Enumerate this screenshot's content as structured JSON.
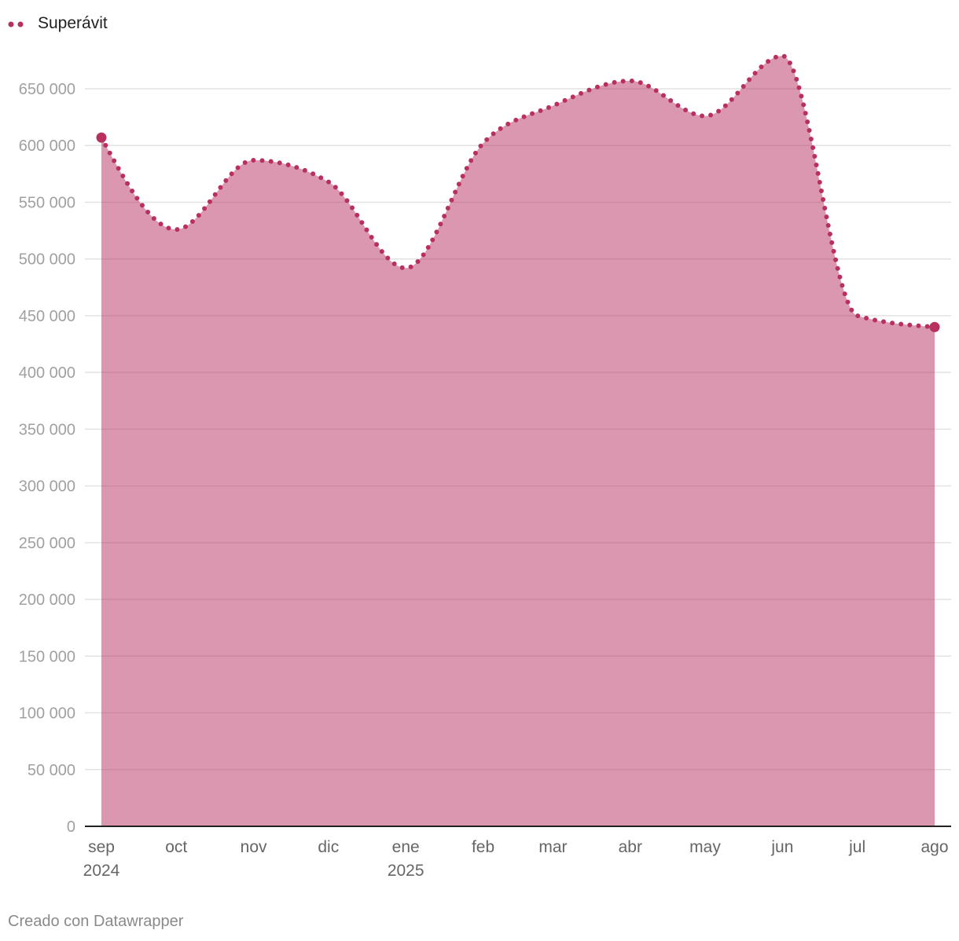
{
  "chart_data": {
    "type": "area",
    "title": "",
    "xlabel": "",
    "ylabel": "",
    "legend_position": "top-left",
    "grid": true,
    "x_labels": [
      {
        "label": "sep",
        "year": "2024"
      },
      {
        "label": "oct"
      },
      {
        "label": "nov"
      },
      {
        "label": "dic"
      },
      {
        "label": "ene",
        "year": "2025"
      },
      {
        "label": "feb"
      },
      {
        "label": "mar"
      },
      {
        "label": "abr"
      },
      {
        "label": "may"
      },
      {
        "label": "jun"
      },
      {
        "label": "jul"
      },
      {
        "label": "ago"
      }
    ],
    "series": [
      {
        "name": "Superávit",
        "color": "#b8305f",
        "values": [
          607000,
          526000,
          587000,
          568000,
          492000,
          602000,
          635000,
          657000,
          626000,
          679000,
          450000,
          440000
        ]
      }
    ],
    "y_axis": {
      "ticks": [
        0,
        50000,
        100000,
        150000,
        200000,
        250000,
        300000,
        350000,
        400000,
        450000,
        500000,
        550000,
        600000,
        650000
      ],
      "tick_labels": [
        "0",
        "50 000",
        "100 000",
        "150 000",
        "200 000",
        "250 000",
        "300 000",
        "350 000",
        "400 000",
        "450 000",
        "500 000",
        "550 000",
        "600 000",
        "650 000"
      ]
    },
    "colors": {
      "grid": "#e2e2e2",
      "baseline": "#222222"
    }
  },
  "footer": {
    "credit": "Creado con Datawrapper"
  }
}
